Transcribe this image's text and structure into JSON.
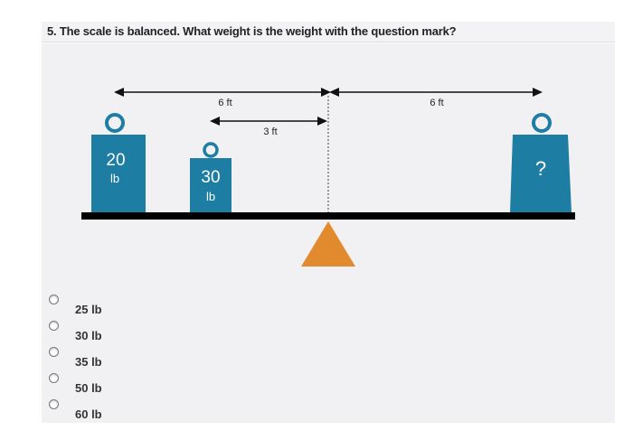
{
  "question": {
    "text": "5. The scale is balanced. What weight is the weight with the question mark?"
  },
  "diagram": {
    "left_weight": {
      "value": "20",
      "unit": "lb"
    },
    "middle_weight": {
      "value": "30",
      "unit": "lb"
    },
    "right_weight": {
      "value": "?"
    },
    "dimensions": {
      "left_span": "6 ft",
      "middle_span": "3 ft",
      "right_span": "6 ft"
    },
    "colors": {
      "weight": "#1e7da3",
      "fulcrum": "#e28a2e",
      "beam": "#000000",
      "panel": "#f1f1f3"
    }
  },
  "options": [
    {
      "label": "25 lb"
    },
    {
      "label": "30 lb"
    },
    {
      "label": "35 lb"
    },
    {
      "label": "50 lb"
    },
    {
      "label": "60 lb"
    }
  ]
}
